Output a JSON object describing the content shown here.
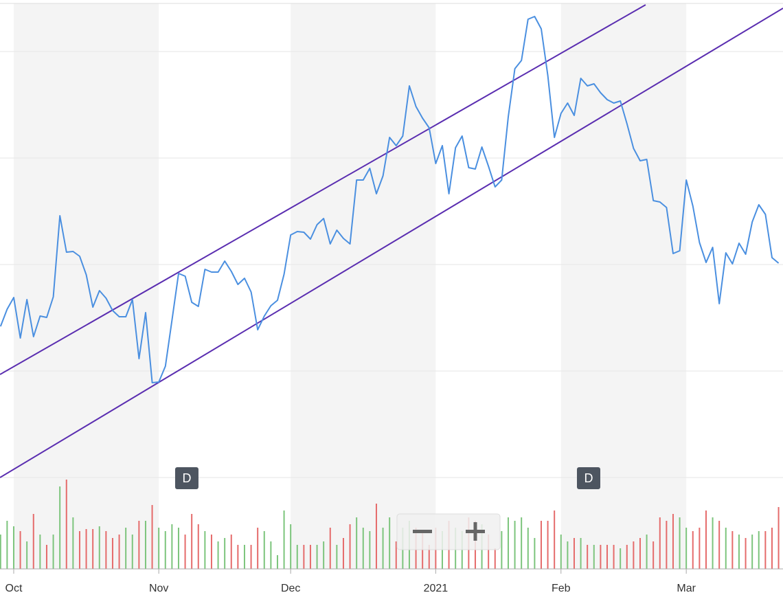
{
  "chart_data": {
    "type": "line",
    "x": [
      -2,
      -1,
      0,
      1,
      2,
      3,
      4,
      5,
      6,
      7,
      8,
      9,
      10,
      11,
      12,
      13,
      14,
      15,
      16,
      17,
      18,
      19,
      20,
      21,
      22,
      23,
      24,
      25,
      26,
      27,
      28,
      29,
      30,
      31,
      32,
      33,
      34,
      35,
      36,
      37,
      38,
      39,
      40,
      41,
      42,
      43,
      44,
      45,
      46,
      47,
      48,
      49,
      50,
      51,
      52,
      53,
      54,
      55,
      56,
      57,
      58,
      59,
      60,
      61,
      62,
      63,
      64,
      65,
      66,
      67,
      68,
      69,
      70,
      71,
      72,
      73,
      74,
      75,
      76,
      77,
      78,
      79,
      80,
      81,
      82,
      83,
      84,
      85,
      86,
      87,
      88,
      89,
      90,
      91,
      92,
      93,
      94,
      95,
      96,
      97,
      98,
      99,
      100,
      101,
      102,
      103,
      104,
      105,
      106,
      107,
      108,
      109,
      110,
      111,
      112,
      113,
      114,
      115,
      116
    ],
    "series": [
      {
        "color": "#4a8fe0",
        "values": [
          375,
          400,
          417,
          358,
          414,
          360,
          390,
          388,
          418,
          536,
          483,
          484,
          477,
          450,
          403,
          427,
          416,
          398,
          389,
          389,
          414,
          328,
          395,
          293,
          294,
          317,
          384,
          452,
          448,
          410,
          404,
          458,
          454,
          454,
          470,
          455,
          436,
          445,
          425,
          370,
          390,
          405,
          413,
          451,
          508,
          513,
          512,
          502,
          523,
          532,
          495,
          515,
          503,
          495,
          588,
          588,
          605,
          568,
          594,
          650,
          638,
          652,
          725,
          695,
          678,
          664,
          612,
          638,
          568,
          635,
          652,
          606,
          604,
          636,
          608,
          578,
          588,
          680,
          750,
          762,
          822,
          826,
          808,
          740,
          650,
          685,
          700,
          682,
          736,
          725,
          728,
          715,
          705,
          700,
          703,
          670,
          634,
          616,
          618,
          558,
          556,
          548,
          481,
          485,
          588,
          550,
          497,
          468,
          490,
          408,
          482,
          466,
          496,
          480,
          527,
          552,
          538,
          475,
          467
        ]
      }
    ],
    "volume": {
      "ylim": [
        0,
        140
      ],
      "up_color": "#7cc47c",
      "down_color": "#e56b6b",
      "values": [
        50,
        70,
        62,
        55,
        40,
        80,
        50,
        35,
        50,
        120,
        130,
        75,
        55,
        58,
        58,
        62,
        55,
        45,
        50,
        60,
        50,
        70,
        70,
        93,
        60,
        55,
        65,
        60,
        50,
        80,
        65,
        55,
        50,
        40,
        45,
        50,
        35,
        35,
        35,
        60,
        55,
        40,
        20,
        85,
        65,
        35,
        35,
        35,
        35,
        40,
        60,
        35,
        45,
        65,
        75,
        60,
        55,
        95,
        60,
        75,
        40,
        60,
        70,
        60,
        55,
        35,
        60,
        55,
        70,
        60,
        55,
        75,
        70,
        65,
        50,
        30,
        55,
        75,
        70,
        75,
        60,
        45,
        70,
        70,
        85,
        50,
        40,
        45,
        45,
        35,
        35,
        35,
        35,
        35,
        30,
        35,
        40,
        45,
        50,
        40,
        75,
        70,
        80,
        75,
        60,
        55,
        60,
        85,
        75,
        70,
        60,
        55,
        50,
        45,
        50,
        55,
        55,
        60,
        90
      ]
    },
    "trend_lines": [
      {
        "color": "#5a2db0",
        "x": [
          -2.08,
          95.83
        ],
        "y": [
          305,
          843
        ]
      },
      {
        "color": "#5a2db0",
        "x": [
          -2.08,
          116.67
        ],
        "y": [
          155,
          838
        ]
      }
    ],
    "markers": [
      {
        "x": 26.25,
        "label": "D"
      },
      {
        "x": 87.19,
        "label": "D"
      }
    ],
    "xlim": [
      -2.08,
      116.67
    ],
    "xticks": [
      {
        "value": 0,
        "label": "Oct"
      },
      {
        "value": 22,
        "label": "Nov"
      },
      {
        "value": 42,
        "label": "Dec"
      },
      {
        "value": 64,
        "label": "2021"
      },
      {
        "value": 83,
        "label": "Feb"
      },
      {
        "value": 102,
        "label": "Mar"
      }
    ],
    "ylim": [
      0,
      850
    ],
    "yticks": [
      155,
      310,
      465,
      620,
      775
    ],
    "grid": true
  }
}
